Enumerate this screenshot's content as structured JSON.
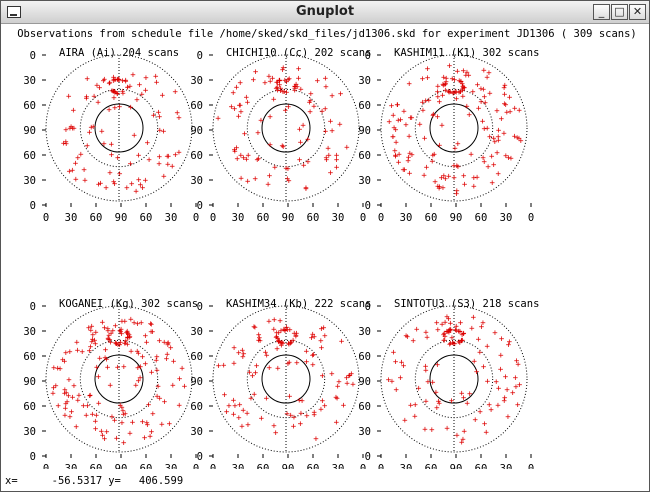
{
  "window": {
    "title": "Gnuplot"
  },
  "plot_title": "Observations from schedule file /home/sked/skd_files/jd1306.skd for experiment JD1306   (    309 scans)",
  "status": {
    "x_label": "x=",
    "x_value": "-56.5317",
    "y_label": "y=",
    "y_value": "406.599"
  },
  "chart_data": [
    {
      "type": "scatter",
      "title": "AIRA (Ai)  204 scans",
      "station": "AIRA",
      "code": "Ai",
      "scans": 204,
      "seed": 11,
      "yticks": [
        "0",
        "30",
        "60",
        "90",
        "60",
        "30",
        "0"
      ],
      "xticks": [
        "0",
        "30",
        "60",
        "90",
        "60",
        "30",
        "0"
      ],
      "point_color": "#dd0000"
    },
    {
      "type": "scatter",
      "title": "CHICHI10 (Cc)  202 scans",
      "station": "CHICHI10",
      "code": "Cc",
      "scans": 202,
      "seed": 23,
      "yticks": [
        "0",
        "30",
        "60",
        "90",
        "60",
        "30",
        "0"
      ],
      "xticks": [
        "0",
        "30",
        "60",
        "90",
        "60",
        "30",
        "0"
      ],
      "point_color": "#dd0000"
    },
    {
      "type": "scatter",
      "title": "KASHIM11 (K1)  302 scans",
      "station": "KASHIM11",
      "code": "K1",
      "scans": 302,
      "seed": 37,
      "yticks": [
        "0",
        "30",
        "60",
        "90",
        "60",
        "30",
        "0"
      ],
      "xticks": [
        "0",
        "30",
        "60",
        "90",
        "60",
        "30",
        "0"
      ],
      "point_color": "#dd0000"
    },
    {
      "type": "scatter",
      "title": "KOGANEI (Kg)  302 scans",
      "station": "KOGANEI",
      "code": "Kg",
      "scans": 302,
      "seed": 41,
      "yticks": [
        "0",
        "30",
        "60",
        "90",
        "60",
        "30",
        "0"
      ],
      "xticks": [
        "0",
        "30",
        "60",
        "90",
        "60",
        "30",
        "0"
      ],
      "point_color": "#dd0000"
    },
    {
      "type": "scatter",
      "title": "KASHIM34 (Kb)  222 scans",
      "station": "KASHIM34",
      "code": "Kb",
      "scans": 222,
      "seed": 53,
      "yticks": [
        "0",
        "30",
        "60",
        "90",
        "60",
        "30",
        "0"
      ],
      "xticks": [
        "0",
        "30",
        "60",
        "90",
        "60",
        "30",
        "0"
      ],
      "point_color": "#dd0000"
    },
    {
      "type": "scatter",
      "title": "SINTOTU3 (S3)  218 scans",
      "station": "SINTOTU3",
      "code": "S3",
      "scans": 218,
      "seed": 67,
      "yticks": [
        "0",
        "30",
        "60",
        "90",
        "60",
        "30",
        "0"
      ],
      "xticks": [
        "0",
        "30",
        "60",
        "90",
        "60",
        "30",
        "0"
      ],
      "point_color": "#dd0000"
    }
  ]
}
